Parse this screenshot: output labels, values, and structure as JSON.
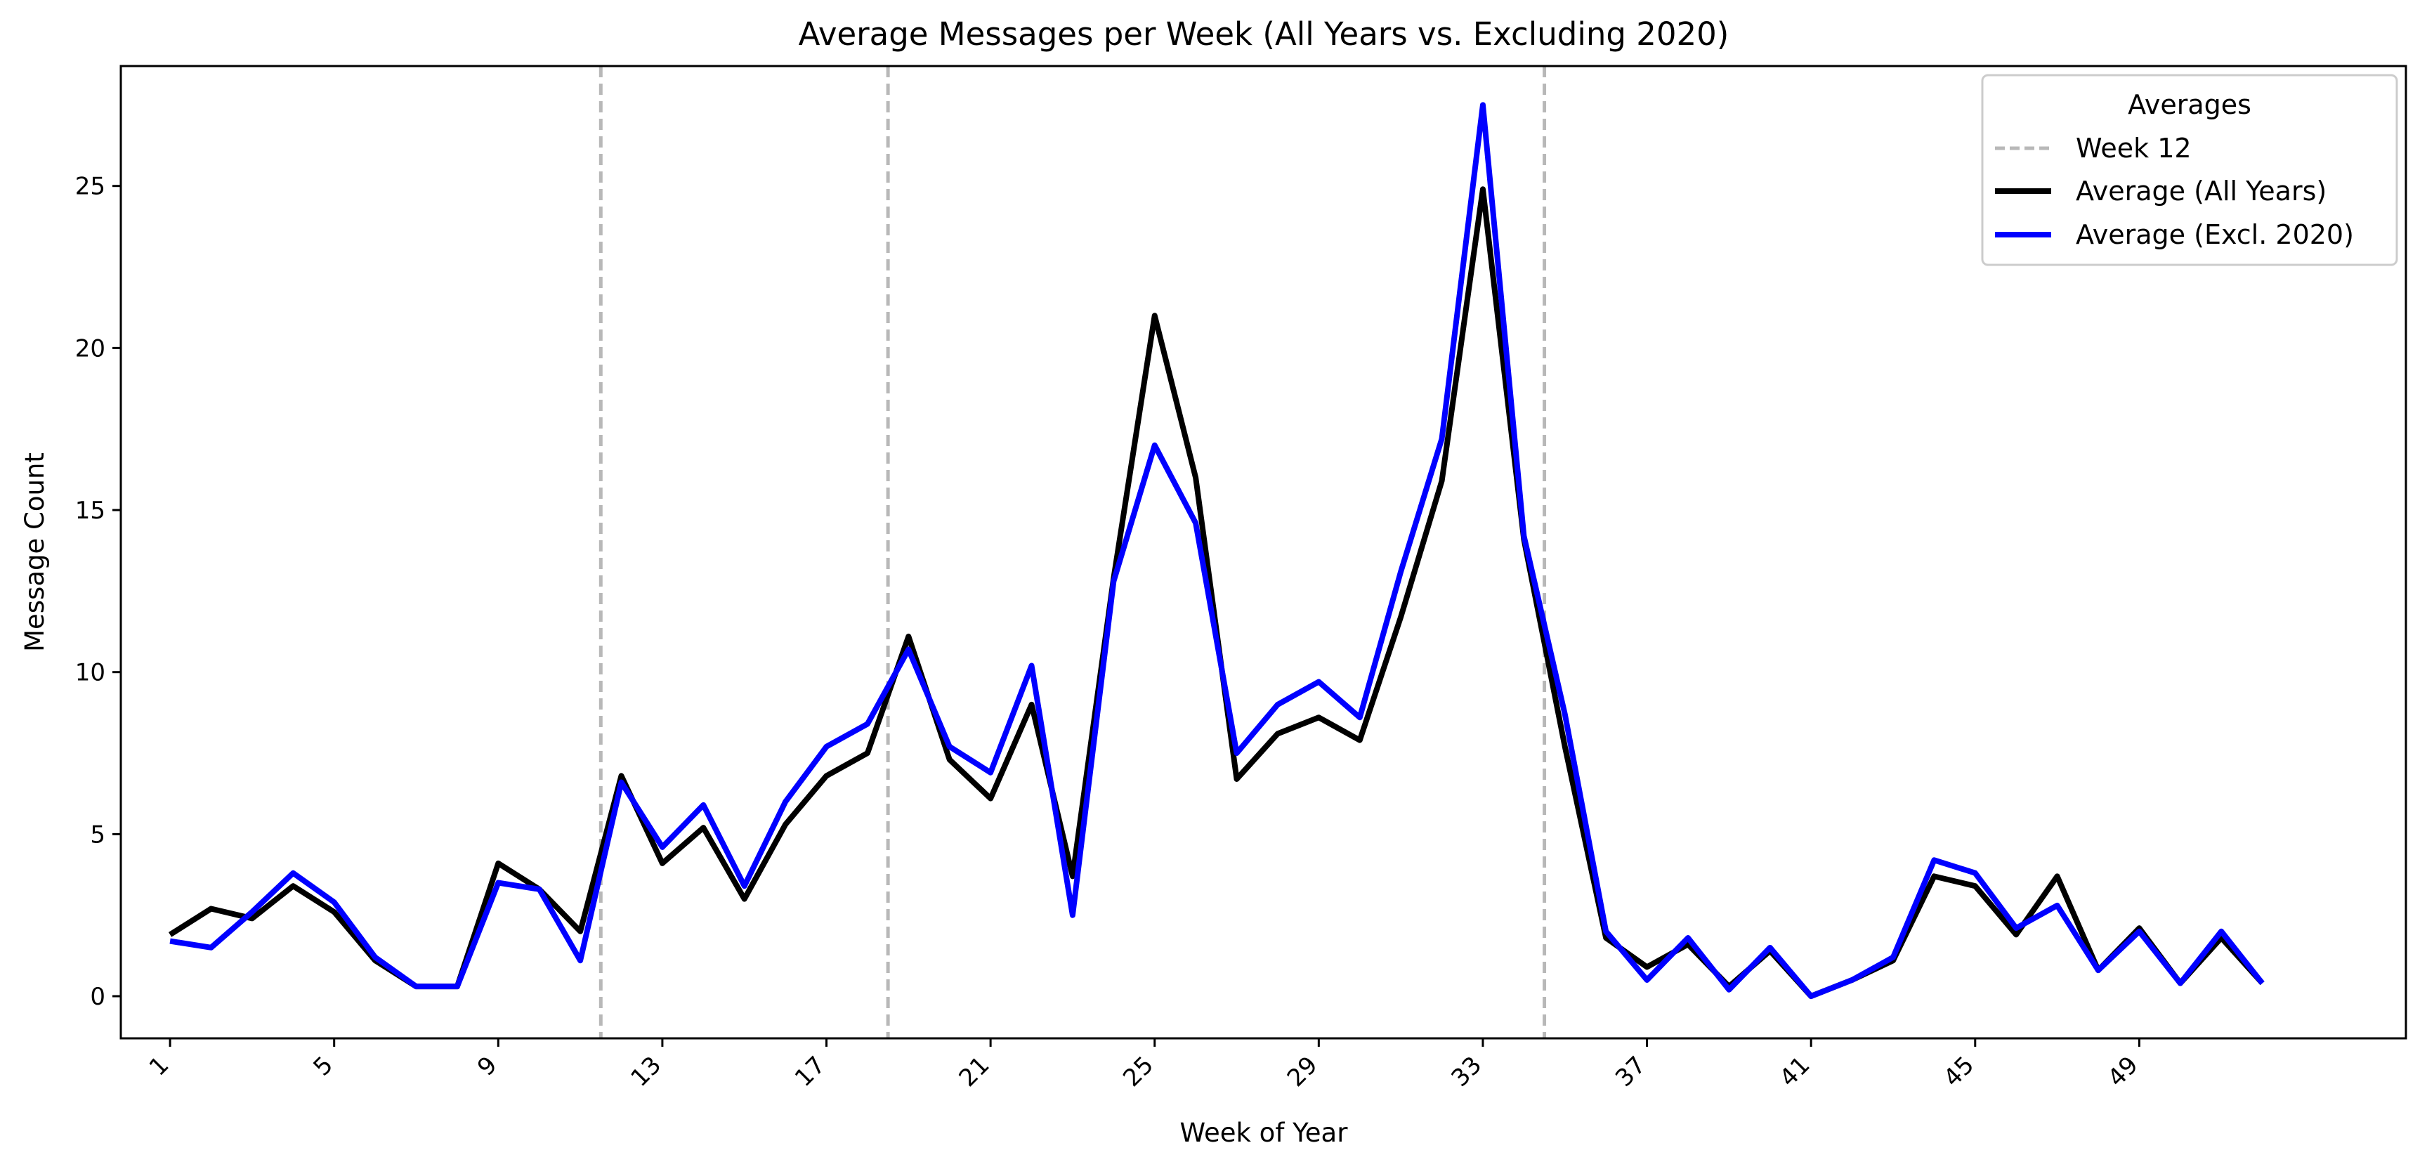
{
  "chart_data": {
    "type": "line",
    "title": "Average Messages per Week (All Years vs. Excluding 2020)",
    "xlabel": "Week of Year",
    "ylabel": "Message Count",
    "x": [
      1,
      2,
      3,
      4,
      5,
      6,
      7,
      8,
      9,
      10,
      11,
      12,
      13,
      14,
      15,
      16,
      17,
      18,
      19,
      20,
      21,
      22,
      23,
      24,
      25,
      26,
      27,
      28,
      29,
      30,
      31,
      32,
      33,
      34,
      35,
      36,
      37,
      38,
      39,
      40,
      41,
      42,
      43,
      44,
      45,
      46,
      47,
      48,
      49,
      50,
      51,
      52
    ],
    "xlim": [
      -0.2,
      55.5
    ],
    "ylim": [
      -1.3,
      28.7
    ],
    "xticks": [
      1,
      5,
      9,
      13,
      17,
      21,
      25,
      29,
      33,
      37,
      41,
      45,
      49
    ],
    "yticks": [
      0,
      5,
      10,
      15,
      20,
      25
    ],
    "grid": false,
    "legend": {
      "title": "Averages",
      "position": "top-right"
    },
    "vlines": {
      "label": "Week 12",
      "color": "#b8b8b8",
      "x": [
        11.5,
        18.5,
        34.5
      ]
    },
    "series": [
      {
        "name": "Average (All Years)",
        "color": "#000000",
        "values": [
          1.9,
          2.7,
          2.4,
          3.4,
          2.6,
          1.1,
          0.3,
          0.3,
          4.1,
          3.3,
          2.0,
          6.8,
          4.1,
          5.2,
          3.0,
          5.3,
          6.8,
          7.5,
          11.1,
          7.3,
          6.1,
          9.0,
          3.7,
          12.9,
          21.0,
          16.0,
          6.7,
          8.1,
          8.6,
          7.9,
          11.7,
          15.9,
          24.9,
          14.1,
          7.7,
          1.8,
          0.9,
          1.6,
          0.3,
          1.4,
          0.0,
          0.5,
          1.1,
          3.7,
          3.4,
          1.9,
          3.7,
          0.8,
          2.1,
          0.4,
          1.8,
          0.4
        ]
      },
      {
        "name": "Average (Excl. 2020)",
        "color": "#0000ff",
        "values": [
          1.7,
          1.5,
          2.6,
          3.8,
          2.9,
          1.2,
          0.3,
          0.3,
          3.5,
          3.3,
          1.1,
          6.6,
          4.6,
          5.9,
          3.4,
          6.0,
          7.7,
          8.4,
          10.7,
          7.7,
          6.9,
          10.2,
          2.5,
          12.8,
          17.0,
          14.6,
          7.5,
          9.0,
          9.7,
          8.6,
          13.1,
          17.2,
          27.5,
          14.2,
          8.7,
          2.0,
          0.5,
          1.8,
          0.2,
          1.5,
          0.0,
          0.5,
          1.2,
          4.2,
          3.8,
          2.1,
          2.8,
          0.8,
          2.0,
          0.4,
          2.0,
          0.4
        ]
      }
    ]
  }
}
